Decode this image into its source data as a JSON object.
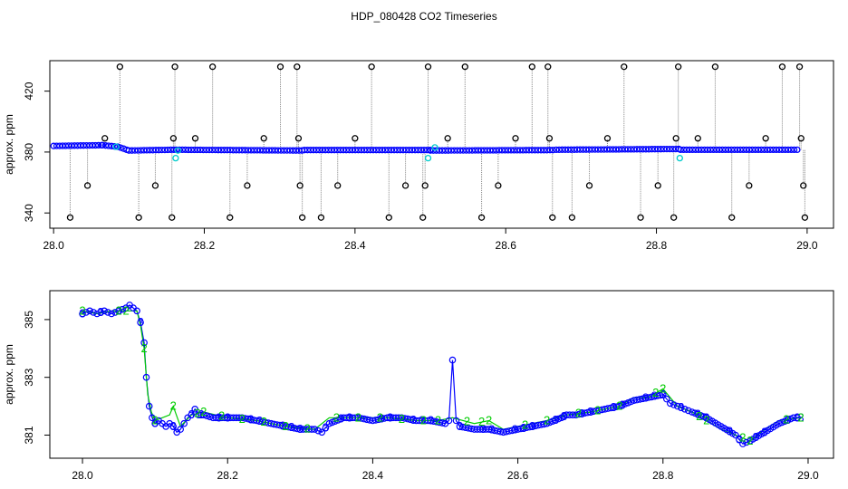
{
  "title": "HDP_080428  CO2 Timeseries",
  "colors": {
    "open_circle": "#000000",
    "circle_blue": "#0000ff",
    "circle_cyan": "#00cccc",
    "line_blue": "#0000ff",
    "line_green": "#00cc00",
    "drop_line": "#888888"
  },
  "chart_data": [
    {
      "type": "scatter",
      "ylabel": "approx. ppm",
      "xlim": [
        27.995,
        29.035
      ],
      "ylim": [
        330,
        440
      ],
      "x_ticks": [
        28.0,
        28.2,
        28.4,
        28.6,
        28.8,
        29.0
      ],
      "x_tick_labels": [
        "28.0",
        "28.2",
        "28.4",
        "28.6",
        "28.8",
        "29.0"
      ],
      "y_ticks": [
        340,
        380,
        420
      ],
      "y_tick_labels": [
        "340",
        "380",
        "420"
      ],
      "grid": false,
      "baseline_segments": [
        {
          "x0": 28.0,
          "x1": 28.065,
          "y0": 384.0,
          "y1": 384.5
        },
        {
          "x0": 28.065,
          "x1": 28.085,
          "y0": 384.5,
          "y1": 383.5
        },
        {
          "x0": 28.085,
          "x1": 28.1,
          "y0": 383.5,
          "y1": 381.0
        },
        {
          "x0": 28.1,
          "x1": 28.16,
          "y0": 381.0,
          "y1": 381.5
        },
        {
          "x0": 28.163,
          "x1": 28.33,
          "y0": 381.5,
          "y1": 381.0
        },
        {
          "x0": 28.333,
          "x1": 28.5,
          "y0": 381.3,
          "y1": 381.3
        },
        {
          "x0": 28.5,
          "x1": 28.665,
          "y0": 381.0,
          "y1": 381.3
        },
        {
          "x0": 28.667,
          "x1": 28.83,
          "y0": 381.5,
          "y1": 382.0
        },
        {
          "x0": 28.832,
          "x1": 28.99,
          "y0": 381.5,
          "y1": 381.5
        }
      ],
      "outliers_black": [
        {
          "x": 28.022,
          "y": 337
        },
        {
          "x": 28.045,
          "y": 358
        },
        {
          "x": 28.068,
          "y": 389
        },
        {
          "x": 28.088,
          "y": 436
        },
        {
          "x": 28.113,
          "y": 337
        },
        {
          "x": 28.135,
          "y": 358
        },
        {
          "x": 28.157,
          "y": 337
        },
        {
          "x": 28.159,
          "y": 389
        },
        {
          "x": 28.161,
          "y": 436
        },
        {
          "x": 28.188,
          "y": 389
        },
        {
          "x": 28.211,
          "y": 436
        },
        {
          "x": 28.234,
          "y": 337
        },
        {
          "x": 28.257,
          "y": 358
        },
        {
          "x": 28.279,
          "y": 389
        },
        {
          "x": 28.301,
          "y": 436
        },
        {
          "x": 28.323,
          "y": 436
        },
        {
          "x": 28.325,
          "y": 389
        },
        {
          "x": 28.327,
          "y": 358
        },
        {
          "x": 28.33,
          "y": 337
        },
        {
          "x": 28.355,
          "y": 337
        },
        {
          "x": 28.377,
          "y": 358
        },
        {
          "x": 28.4,
          "y": 389
        },
        {
          "x": 28.422,
          "y": 436
        },
        {
          "x": 28.445,
          "y": 337
        },
        {
          "x": 28.467,
          "y": 358
        },
        {
          "x": 28.49,
          "y": 337
        },
        {
          "x": 28.493,
          "y": 358
        },
        {
          "x": 28.497,
          "y": 436
        },
        {
          "x": 28.523,
          "y": 389
        },
        {
          "x": 28.546,
          "y": 436
        },
        {
          "x": 28.568,
          "y": 337
        },
        {
          "x": 28.59,
          "y": 358
        },
        {
          "x": 28.613,
          "y": 389
        },
        {
          "x": 28.635,
          "y": 436
        },
        {
          "x": 28.656,
          "y": 436
        },
        {
          "x": 28.658,
          "y": 389
        },
        {
          "x": 28.662,
          "y": 337
        },
        {
          "x": 28.688,
          "y": 337
        },
        {
          "x": 28.711,
          "y": 358
        },
        {
          "x": 28.735,
          "y": 389
        },
        {
          "x": 28.757,
          "y": 436
        },
        {
          "x": 28.779,
          "y": 337
        },
        {
          "x": 28.802,
          "y": 358
        },
        {
          "x": 28.823,
          "y": 337
        },
        {
          "x": 28.826,
          "y": 389
        },
        {
          "x": 28.829,
          "y": 436
        },
        {
          "x": 28.855,
          "y": 389
        },
        {
          "x": 28.878,
          "y": 436
        },
        {
          "x": 28.9,
          "y": 337
        },
        {
          "x": 28.923,
          "y": 358
        },
        {
          "x": 28.945,
          "y": 389
        },
        {
          "x": 28.967,
          "y": 436
        },
        {
          "x": 28.99,
          "y": 436
        },
        {
          "x": 28.992,
          "y": 389
        },
        {
          "x": 28.995,
          "y": 358
        },
        {
          "x": 28.997,
          "y": 337
        }
      ],
      "points_cyan": [
        {
          "x": 28.083,
          "y": 383.5
        },
        {
          "x": 28.162,
          "y": 376.0
        },
        {
          "x": 28.165,
          "y": 381.0
        },
        {
          "x": 28.497,
          "y": 376.0
        },
        {
          "x": 28.506,
          "y": 383.0
        },
        {
          "x": 28.831,
          "y": 376.0
        }
      ]
    },
    {
      "type": "line",
      "ylabel": "approx. ppm",
      "xlim": [
        27.955,
        29.035
      ],
      "ylim": [
        380.2,
        386.0
      ],
      "x_ticks": [
        28.0,
        28.2,
        28.4,
        28.6,
        28.8,
        29.0
      ],
      "x_tick_labels": [
        "28.0",
        "28.2",
        "28.4",
        "28.6",
        "28.8",
        "29.0"
      ],
      "y_ticks": [
        381,
        383,
        385
      ],
      "y_tick_labels": [
        "381",
        "383",
        "385"
      ],
      "grid": false,
      "markers": {
        "series_3": "3",
        "series_2": "2"
      },
      "series": [
        {
          "marker": "3",
          "x": [
            28.0,
            28.01,
            28.02,
            28.03,
            28.04,
            28.05,
            28.06,
            28.065,
            28.07,
            28.075,
            28.08,
            28.085,
            28.088,
            28.092,
            28.096,
            28.1,
            28.105,
            28.11,
            28.115,
            28.12,
            28.125,
            28.13,
            28.135,
            28.14,
            28.145,
            28.15,
            28.155,
            28.16,
            28.167,
            28.18,
            28.2,
            28.22,
            28.24,
            28.26,
            28.28,
            28.3,
            28.32,
            28.33,
            28.34,
            28.36,
            28.38,
            28.4,
            28.42,
            28.44,
            28.46,
            28.48,
            28.5,
            28.505,
            28.51,
            28.515,
            28.52,
            28.54,
            28.56,
            28.58,
            28.6,
            28.62,
            28.64,
            28.66,
            28.667,
            28.68,
            28.7,
            28.72,
            28.74,
            28.76,
            28.78,
            28.8,
            28.81,
            28.82,
            28.83,
            28.84,
            28.86,
            28.88,
            28.9,
            28.91,
            28.92,
            28.94,
            28.96,
            28.98,
            28.99
          ],
          "y": [
            385.2,
            385.3,
            385.2,
            385.3,
            385.2,
            385.3,
            385.4,
            385.5,
            385.4,
            385.3,
            384.9,
            384.2,
            383.0,
            382.0,
            381.6,
            381.4,
            381.5,
            381.4,
            381.3,
            381.4,
            381.3,
            381.1,
            381.2,
            381.4,
            381.6,
            381.7,
            381.9,
            381.7,
            381.7,
            381.6,
            381.6,
            381.6,
            381.5,
            381.4,
            381.3,
            381.2,
            381.2,
            381.1,
            381.4,
            381.6,
            381.6,
            381.5,
            381.6,
            381.6,
            381.5,
            381.5,
            381.4,
            381.5,
            383.6,
            381.5,
            381.3,
            381.2,
            381.2,
            381.1,
            381.2,
            381.3,
            381.4,
            381.6,
            381.7,
            381.7,
            381.8,
            381.9,
            382.0,
            382.2,
            382.3,
            382.4,
            382.1,
            382.0,
            381.9,
            381.8,
            381.6,
            381.3,
            381.0,
            380.7,
            380.8,
            381.1,
            381.4,
            381.6,
            381.6
          ]
        },
        {
          "marker": "2",
          "x": [
            28.0,
            28.02,
            28.04,
            28.06,
            28.075,
            28.08,
            28.085,
            28.09,
            28.095,
            28.1,
            28.11,
            28.12,
            28.125,
            28.135,
            28.15,
            28.167,
            28.2,
            28.24,
            28.28,
            28.32,
            28.34,
            28.38,
            28.42,
            28.46,
            28.49,
            28.51,
            28.54,
            28.56,
            28.58,
            28.6,
            28.64,
            28.667,
            28.7,
            28.74,
            28.76,
            28.78,
            28.8,
            28.82,
            28.84,
            28.86,
            28.88,
            28.9,
            28.92,
            28.94,
            28.96,
            28.99
          ],
          "y": [
            385.3,
            385.2,
            385.3,
            385.3,
            385.3,
            384.8,
            384.0,
            382.4,
            381.8,
            381.5,
            381.6,
            381.7,
            382.0,
            381.3,
            381.7,
            381.8,
            381.6,
            381.5,
            381.3,
            381.2,
            381.6,
            381.6,
            381.6,
            381.5,
            381.5,
            381.6,
            381.4,
            381.5,
            381.2,
            381.3,
            381.5,
            381.7,
            381.8,
            382.0,
            382.3,
            382.3,
            382.6,
            382.0,
            381.8,
            381.5,
            381.2,
            381.0,
            380.8,
            381.2,
            381.5,
            381.6
          ]
        }
      ]
    }
  ]
}
